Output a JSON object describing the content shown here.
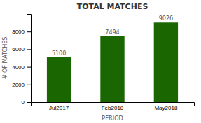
{
  "chart_data": {
    "type": "bar",
    "title": "TOTAL MATCHES",
    "xlabel": "PERIOD",
    "ylabel": "# OF MATCHES",
    "categories": [
      "Jul2017",
      "Feb2018",
      "May2018"
    ],
    "values": [
      5100,
      7494,
      9026
    ],
    "color": "#1a6600",
    "ylim": [
      0,
      10000
    ],
    "yticks": [
      0,
      2000,
      4000,
      6000,
      8000
    ],
    "grid": false,
    "data_labels": true
  }
}
